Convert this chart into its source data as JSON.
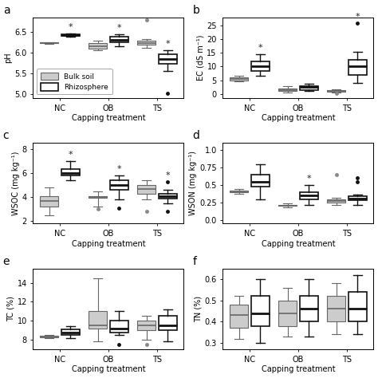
{
  "panels": [
    {
      "label": "a",
      "ylabel": "pH",
      "ylim": [
        4.9,
        6.85
      ],
      "yticks": [
        5.0,
        5.5,
        6.0,
        6.5
      ],
      "groups": [
        "NC",
        "OB",
        "TS"
      ],
      "bulk": {
        "NC": {
          "q1": 6.22,
          "median": 6.23,
          "q3": 6.24,
          "whislo": 6.21,
          "whishi": 6.25,
          "fliers": []
        },
        "OB": {
          "q1": 6.1,
          "median": 6.15,
          "q3": 6.22,
          "whislo": 6.05,
          "whishi": 6.28,
          "fliers": []
        },
        "TS": {
          "q1": 6.18,
          "median": 6.23,
          "q3": 6.28,
          "whislo": 6.12,
          "whishi": 6.33,
          "fliers": [
            6.78
          ]
        }
      },
      "rhizo": {
        "NC": {
          "q1": 6.4,
          "median": 6.43,
          "q3": 6.44,
          "whislo": 6.38,
          "whishi": 6.46,
          "fliers": [],
          "star": true
        },
        "OB": {
          "q1": 6.24,
          "median": 6.3,
          "q3": 6.38,
          "whislo": 6.15,
          "whishi": 6.44,
          "fliers": [],
          "star": true
        },
        "TS": {
          "q1": 5.72,
          "median": 5.85,
          "q3": 5.95,
          "whislo": 5.55,
          "whishi": 6.05,
          "fliers": [
            5.02
          ],
          "star": true
        }
      }
    },
    {
      "label": "b",
      "ylabel": "EC (dS m⁻¹)",
      "ylim": [
        -1.5,
        28
      ],
      "yticks": [
        0,
        5,
        10,
        15,
        20,
        25
      ],
      "groups": [
        "NC",
        "OB",
        "TS"
      ],
      "bulk": {
        "NC": {
          "q1": 5.0,
          "median": 5.5,
          "q3": 6.0,
          "whislo": 4.5,
          "whishi": 6.5,
          "fliers": []
        },
        "OB": {
          "q1": 1.0,
          "median": 1.5,
          "q3": 2.0,
          "whislo": 0.5,
          "whishi": 2.8,
          "fliers": []
        },
        "TS": {
          "q1": 0.8,
          "median": 1.2,
          "q3": 1.5,
          "whislo": 0.5,
          "whishi": 1.8,
          "fliers": [
            0.1
          ]
        }
      },
      "rhizo": {
        "NC": {
          "q1": 8.5,
          "median": 10.0,
          "q3": 12.0,
          "whislo": 6.5,
          "whishi": 14.5,
          "fliers": [],
          "star": true
        },
        "OB": {
          "q1": 1.5,
          "median": 2.5,
          "q3": 3.0,
          "whislo": 1.0,
          "whishi": 3.8,
          "fliers": [],
          "star": false
        },
        "TS": {
          "q1": 7.0,
          "median": 10.0,
          "q3": 12.5,
          "whislo": 4.0,
          "whishi": 15.5,
          "fliers": [
            26.0
          ],
          "star": true
        }
      }
    },
    {
      "label": "c",
      "ylabel": "WSOC (mg kg⁻¹)",
      "ylim": [
        1.8,
        8.5
      ],
      "yticks": [
        2,
        4,
        6,
        8
      ],
      "groups": [
        "NC",
        "OB",
        "TS"
      ],
      "bulk": {
        "NC": {
          "q1": 3.2,
          "median": 3.7,
          "q3": 4.1,
          "whislo": 2.5,
          "whishi": 4.8,
          "fliers": []
        },
        "OB": {
          "q1": 3.95,
          "median": 4.0,
          "q3": 4.05,
          "whislo": 3.2,
          "whishi": 4.5,
          "fliers": [
            3.0
          ]
        },
        "TS": {
          "q1": 4.3,
          "median": 4.7,
          "q3": 5.0,
          "whislo": 3.8,
          "whishi": 5.4,
          "fliers": [
            2.8
          ]
        }
      },
      "rhizo": {
        "NC": {
          "q1": 5.8,
          "median": 6.0,
          "q3": 6.3,
          "whislo": 5.4,
          "whishi": 7.0,
          "fliers": [],
          "star": true
        },
        "OB": {
          "q1": 4.6,
          "median": 5.0,
          "q3": 5.4,
          "whislo": 3.8,
          "whishi": 5.8,
          "fliers": [
            3.1
          ],
          "star": true
        },
        "TS": {
          "q1": 3.9,
          "median": 4.1,
          "q3": 4.3,
          "whislo": 3.5,
          "whishi": 4.6,
          "fliers": [
            5.3,
            2.8
          ],
          "star": true
        }
      }
    },
    {
      "label": "d",
      "ylabel": "WSON (mg kg⁻¹)",
      "ylim": [
        -0.05,
        1.1
      ],
      "yticks": [
        0.0,
        0.25,
        0.5,
        0.75,
        1.0
      ],
      "groups": [
        "NC",
        "OB",
        "TS"
      ],
      "bulk": {
        "NC": {
          "q1": 0.4,
          "median": 0.41,
          "q3": 0.42,
          "whislo": 0.38,
          "whishi": 0.44,
          "fliers": []
        },
        "OB": {
          "q1": 0.2,
          "median": 0.21,
          "q3": 0.22,
          "whislo": 0.18,
          "whishi": 0.24,
          "fliers": []
        },
        "TS": {
          "q1": 0.25,
          "median": 0.27,
          "q3": 0.3,
          "whislo": 0.22,
          "whishi": 0.32,
          "fliers": [
            0.65
          ]
        }
      },
      "rhizo": {
        "NC": {
          "q1": 0.48,
          "median": 0.55,
          "q3": 0.65,
          "whislo": 0.3,
          "whishi": 0.8,
          "fliers": [],
          "star": false
        },
        "OB": {
          "q1": 0.3,
          "median": 0.35,
          "q3": 0.4,
          "whislo": 0.22,
          "whishi": 0.5,
          "fliers": [],
          "star": true
        },
        "TS": {
          "q1": 0.28,
          "median": 0.31,
          "q3": 0.34,
          "whislo": 0.22,
          "whishi": 0.36,
          "fliers": [
            0.55,
            0.6
          ],
          "star": false
        }
      }
    },
    {
      "label": "e",
      "ylabel": "TC (%)",
      "ylim": [
        7.0,
        15.5
      ],
      "yticks": [
        8,
        10,
        12,
        14
      ],
      "groups": [
        "NC",
        "OB",
        "TS"
      ],
      "bulk": {
        "NC": {
          "q1": 8.3,
          "median": 8.35,
          "q3": 8.4,
          "whislo": 8.2,
          "whishi": 8.5,
          "fliers": []
        },
        "OB": {
          "q1": 9.2,
          "median": 9.5,
          "q3": 11.0,
          "whislo": 7.8,
          "whishi": 14.5,
          "fliers": []
        },
        "TS": {
          "q1": 9.0,
          "median": 9.5,
          "q3": 10.0,
          "whislo": 8.0,
          "whishi": 10.5,
          "fliers": [
            7.5
          ]
        }
      },
      "rhizo": {
        "NC": {
          "q1": 8.5,
          "median": 8.8,
          "q3": 9.1,
          "whislo": 8.2,
          "whishi": 9.4,
          "fliers": [],
          "star": false
        },
        "OB": {
          "q1": 8.8,
          "median": 9.2,
          "q3": 10.0,
          "whislo": 8.5,
          "whishi": 11.0,
          "fliers": [
            7.5
          ],
          "star": false
        },
        "TS": {
          "q1": 9.0,
          "median": 9.5,
          "q3": 10.5,
          "whislo": 7.8,
          "whishi": 11.2,
          "fliers": [],
          "star": false
        }
      }
    },
    {
      "label": "f",
      "ylabel": "TN (%)",
      "ylim": [
        0.27,
        0.65
      ],
      "yticks": [
        0.3,
        0.4,
        0.5,
        0.6
      ],
      "groups": [
        "NC",
        "OB",
        "TS"
      ],
      "bulk": {
        "NC": {
          "q1": 0.37,
          "median": 0.43,
          "q3": 0.48,
          "whislo": 0.32,
          "whishi": 0.52,
          "fliers": []
        },
        "OB": {
          "q1": 0.38,
          "median": 0.44,
          "q3": 0.5,
          "whislo": 0.33,
          "whishi": 0.56,
          "fliers": []
        },
        "TS": {
          "q1": 0.4,
          "median": 0.46,
          "q3": 0.52,
          "whislo": 0.34,
          "whishi": 0.58,
          "fliers": []
        }
      },
      "rhizo": {
        "NC": {
          "q1": 0.38,
          "median": 0.44,
          "q3": 0.52,
          "whislo": 0.3,
          "whishi": 0.6,
          "fliers": [],
          "star": false
        },
        "OB": {
          "q1": 0.4,
          "median": 0.46,
          "q3": 0.52,
          "whislo": 0.33,
          "whishi": 0.6,
          "fliers": [],
          "star": false
        },
        "TS": {
          "q1": 0.4,
          "median": 0.46,
          "q3": 0.54,
          "whislo": 0.34,
          "whishi": 0.62,
          "fliers": [],
          "star": false
        }
      }
    }
  ],
  "bulk_facecolor": "#cccccc",
  "rhizo_facecolor": "#ffffff",
  "bulk_edgecolor": "#666666",
  "rhizo_edgecolor": "#111111",
  "xlabel": "Capping treatment",
  "legend_labels": [
    "Bulk soil",
    "Rhizosphere"
  ]
}
